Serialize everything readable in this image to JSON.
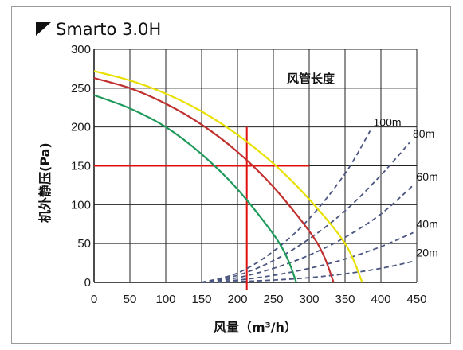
{
  "chart_data": {
    "type": "line",
    "title": "Smarto 3.0H",
    "xlabel": "风量（m³/h）",
    "ylabel": "机外静压(Pa)",
    "xlim": [
      0,
      450
    ],
    "ylim": [
      0,
      300
    ],
    "x_ticks": [
      0,
      50,
      100,
      150,
      200,
      250,
      300,
      350,
      400,
      450
    ],
    "y_ticks": [
      0,
      50,
      100,
      150,
      200,
      250,
      300
    ],
    "grid": true,
    "legend_title": "风管长度",
    "fan_curves": [
      {
        "color": "#e8e000",
        "points": [
          [
            0,
            272
          ],
          [
            50,
            260
          ],
          [
            100,
            243
          ],
          [
            150,
            220
          ],
          [
            200,
            190
          ],
          [
            250,
            153
          ],
          [
            300,
            107
          ],
          [
            350,
            50
          ],
          [
            374,
            0
          ]
        ]
      },
      {
        "color": "#c0302e",
        "points": [
          [
            0,
            263
          ],
          [
            50,
            250
          ],
          [
            100,
            230
          ],
          [
            150,
            203
          ],
          [
            200,
            168
          ],
          [
            250,
            123
          ],
          [
            300,
            66
          ],
          [
            320,
            35
          ],
          [
            334,
            0
          ]
        ]
      },
      {
        "color": "#1e9a5a",
        "points": [
          [
            0,
            241
          ],
          [
            50,
            224
          ],
          [
            100,
            200
          ],
          [
            150,
            165
          ],
          [
            200,
            120
          ],
          [
            250,
            62
          ],
          [
            270,
            30
          ],
          [
            282,
            0
          ]
        ]
      }
    ],
    "duct_curves": [
      {
        "name": "100m",
        "color": "#4a5580",
        "points": [
          [
            150,
            0
          ],
          [
            200,
            12
          ],
          [
            250,
            40
          ],
          [
            300,
            82
          ],
          [
            350,
            140
          ],
          [
            385,
            195
          ]
        ]
      },
      {
        "name": "80m",
        "color": "#4a5580",
        "points": [
          [
            150,
            0
          ],
          [
            200,
            9
          ],
          [
            250,
            28
          ],
          [
            300,
            56
          ],
          [
            350,
            92
          ],
          [
            400,
            138
          ],
          [
            440,
            180
          ]
        ]
      },
      {
        "name": "60m",
        "color": "#4a5580",
        "points": [
          [
            150,
            0
          ],
          [
            200,
            6
          ],
          [
            250,
            18
          ],
          [
            300,
            35
          ],
          [
            350,
            58
          ],
          [
            400,
            88
          ],
          [
            445,
            125
          ]
        ]
      },
      {
        "name": "40m",
        "color": "#4a5580",
        "points": [
          [
            150,
            0
          ],
          [
            200,
            3
          ],
          [
            250,
            9
          ],
          [
            300,
            18
          ],
          [
            350,
            30
          ],
          [
            400,
            46
          ],
          [
            445,
            64
          ]
        ]
      },
      {
        "name": "20m",
        "color": "#4a5580",
        "points": [
          [
            150,
            0
          ],
          [
            200,
            1
          ],
          [
            250,
            3
          ],
          [
            300,
            6
          ],
          [
            350,
            11
          ],
          [
            400,
            18
          ],
          [
            445,
            27
          ]
        ]
      }
    ],
    "reference_lines": {
      "color": "#e01010",
      "horizontal": {
        "y": 150,
        "x_from": 0,
        "x_to": 300
      },
      "vertical": {
        "x": 213,
        "y_from": -10,
        "y_to": 200
      }
    }
  }
}
